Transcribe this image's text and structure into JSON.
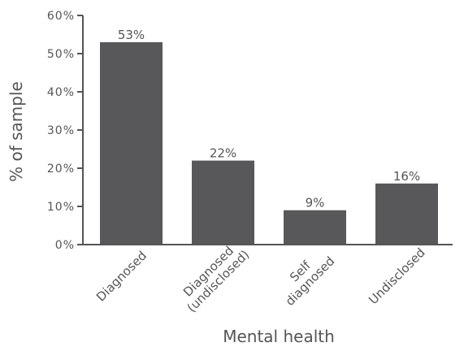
{
  "chart_data": {
    "type": "bar",
    "categories": [
      [
        "Diagnosed"
      ],
      [
        "Diagnosed",
        "(undisclosed)"
      ],
      [
        "Self",
        "diagnosed"
      ],
      [
        "Undisclosed"
      ]
    ],
    "values": [
      53,
      22,
      9,
      16
    ],
    "data_labels": [
      "53%",
      "22%",
      "9%",
      "16%"
    ],
    "yticks": [
      0,
      10,
      20,
      30,
      40,
      50,
      60
    ],
    "ytick_labels": [
      "0%",
      "10%",
      "20%",
      "30%",
      "40%",
      "50%",
      "60%"
    ],
    "ylim": [
      0,
      60
    ],
    "xlabel": "Mental health",
    "ylabel": "% of sample",
    "grid": false,
    "colors": {
      "bar": "#58585a",
      "text": "#555555",
      "axis": "#555555"
    }
  }
}
